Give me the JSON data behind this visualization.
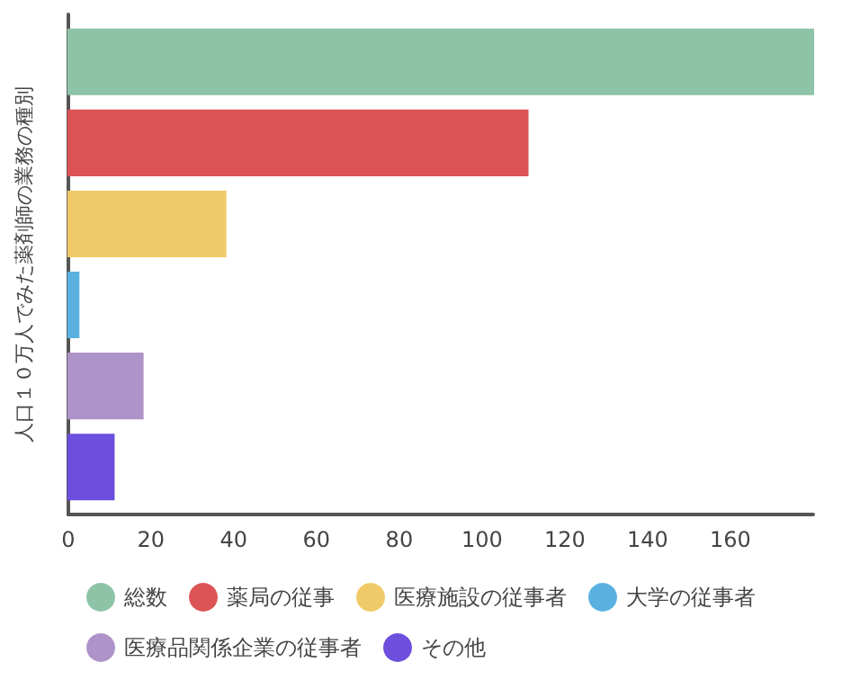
{
  "chart_data": {
    "type": "bar",
    "orientation": "horizontal",
    "ylabel": "人口１０万人でみた薬剤師の業務の種別",
    "categories": [
      null
    ],
    "series": [
      {
        "name": "総数",
        "color": "#8dc3a7",
        "values": [
          180
        ]
      },
      {
        "name": "薬局の従事",
        "color": "#dc5356",
        "values": [
          111
        ]
      },
      {
        "name": "医療施設の従事者",
        "color": "#f0ca68",
        "values": [
          38
        ]
      },
      {
        "name": "大学の従事者",
        "color": "#5ab1e0",
        "values": [
          2.5
        ]
      },
      {
        "name": "医療品関係企業の従事者",
        "color": "#ae93c8",
        "values": [
          18
        ]
      },
      {
        "name": "その他",
        "color": "#6c4fdc",
        "values": [
          11
        ]
      }
    ],
    "xlim": [
      0,
      180
    ],
    "xticks": [
      0,
      20,
      40,
      60,
      80,
      100,
      120,
      140,
      160
    ],
    "grid": false,
    "legend": "bottom"
  }
}
